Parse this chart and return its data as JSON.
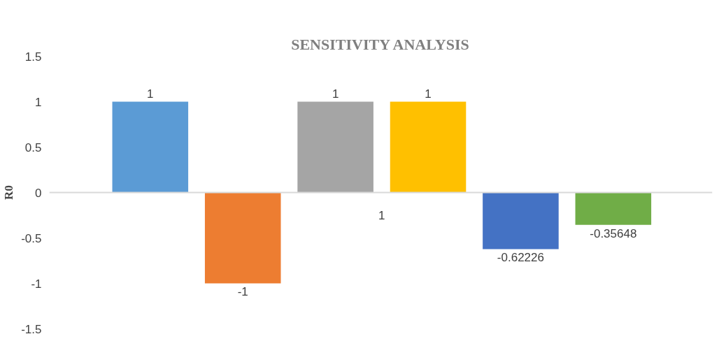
{
  "chart_data": {
    "type": "bar",
    "title": "SENSITIVITY ANALYSIS",
    "ylabel": "R0",
    "categories": [
      null,
      null,
      null,
      null,
      null,
      null
    ],
    "values": [
      1,
      -1,
      1,
      1,
      -0.62226,
      -0.35648
    ],
    "colors": [
      "#5b9bd5",
      "#ed7d31",
      "#a5a5a5",
      "#ffc000",
      "#4472c4",
      "#70ad47"
    ],
    "ylim": [
      -1.5,
      1.5
    ],
    "yticks": [
      -1.5,
      -1,
      -0.5,
      0,
      0.5,
      1,
      1.5
    ],
    "tick_labels": "y",
    "data_labels": true,
    "annotations": [
      "1"
    ]
  }
}
